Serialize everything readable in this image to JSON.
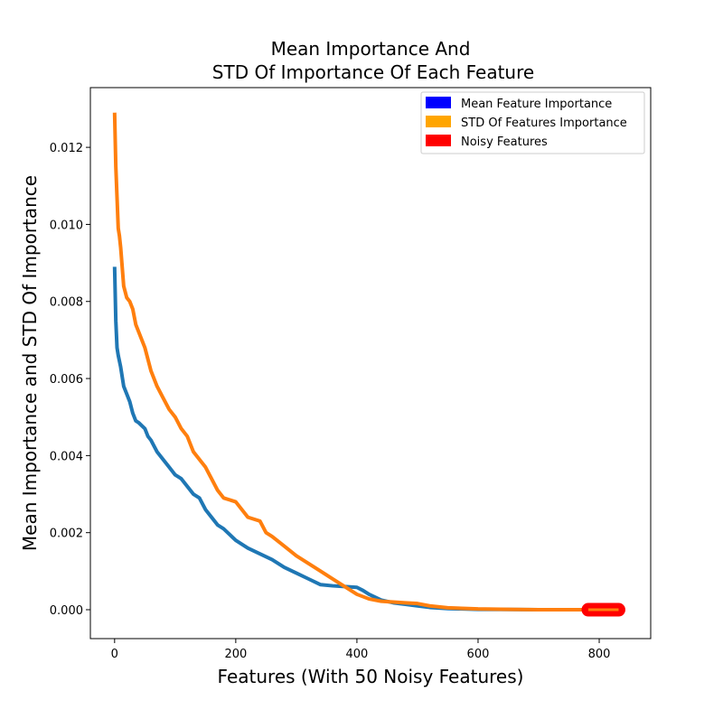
{
  "chart_data": {
    "type": "line",
    "title_line1": "Mean Importance And",
    "title_line2": "STD Of Importance Of Each Feature",
    "xlabel": "Features (With 50 Noisy Features)",
    "ylabel": "Mean Importance and STD Of Importance",
    "xlim": [
      -40,
      885
    ],
    "ylim": [
      -0.00075,
      0.01355
    ],
    "x_ticks": [
      0,
      200,
      400,
      600,
      800
    ],
    "x_tick_labels": [
      "0",
      "200",
      "400",
      "600",
      "800"
    ],
    "y_ticks": [
      0.0,
      0.002,
      0.004,
      0.006,
      0.008,
      0.01,
      0.012
    ],
    "y_tick_labels": [
      "0.000",
      "0.002",
      "0.004",
      "0.006",
      "0.008",
      "0.010",
      "0.012"
    ],
    "grid": false,
    "legend_position": "upper-right",
    "legend": [
      {
        "label": "Mean Feature Importance",
        "color": "#0000ff"
      },
      {
        "label": "STD Of Features Importance",
        "color": "#ffa500"
      },
      {
        "label": "Noisy Features",
        "color": "#ff0000"
      }
    ],
    "series": [
      {
        "name": "Mean Feature Importance",
        "color": "#1f77b4",
        "x": [
          0,
          2,
          4,
          6,
          10,
          15,
          20,
          25,
          30,
          35,
          40,
          50,
          55,
          60,
          70,
          80,
          90,
          100,
          110,
          120,
          130,
          140,
          150,
          160,
          170,
          180,
          190,
          200,
          220,
          240,
          260,
          280,
          300,
          320,
          340,
          360,
          380,
          400,
          410,
          420,
          440,
          460,
          480,
          500,
          520,
          550,
          600,
          650,
          700,
          780,
          832
        ],
        "y": [
          0.0089,
          0.0075,
          0.0068,
          0.0066,
          0.0063,
          0.0058,
          0.0056,
          0.0054,
          0.0051,
          0.0049,
          0.00485,
          0.0047,
          0.0045,
          0.0044,
          0.0041,
          0.0039,
          0.0037,
          0.0035,
          0.0034,
          0.0032,
          0.003,
          0.0029,
          0.0026,
          0.0024,
          0.0022,
          0.0021,
          0.00195,
          0.0018,
          0.0016,
          0.00145,
          0.0013,
          0.0011,
          0.00095,
          0.0008,
          0.00065,
          0.00062,
          0.0006,
          0.00058,
          0.0005,
          0.0004,
          0.00025,
          0.00018,
          0.00014,
          0.0001,
          6e-05,
          3e-05,
          1e-05,
          5e-06,
          0.0,
          0.0,
          0.0
        ]
      },
      {
        "name": "STD Of Features Importance",
        "color": "#ff7f0e",
        "x": [
          0,
          2,
          4,
          6,
          8,
          10,
          12,
          15,
          20,
          25,
          30,
          35,
          40,
          50,
          60,
          70,
          80,
          90,
          100,
          110,
          120,
          130,
          140,
          150,
          160,
          170,
          180,
          200,
          220,
          240,
          250,
          260,
          280,
          300,
          320,
          340,
          360,
          380,
          400,
          420,
          440,
          460,
          480,
          500,
          520,
          550,
          600,
          650,
          700,
          780,
          832
        ],
        "y": [
          0.0129,
          0.0115,
          0.0107,
          0.0099,
          0.0097,
          0.0094,
          0.009,
          0.0084,
          0.0081,
          0.008,
          0.0078,
          0.0074,
          0.0072,
          0.0068,
          0.0062,
          0.0058,
          0.0055,
          0.0052,
          0.005,
          0.0047,
          0.0045,
          0.0041,
          0.0039,
          0.0037,
          0.0034,
          0.0031,
          0.0029,
          0.0028,
          0.0024,
          0.0023,
          0.002,
          0.0019,
          0.00165,
          0.0014,
          0.0012,
          0.001,
          0.0008,
          0.0006,
          0.0004,
          0.00028,
          0.00022,
          0.0002,
          0.00018,
          0.00016,
          0.0001,
          5e-05,
          2e-05,
          1e-05,
          0.0,
          0.0,
          0.0
        ]
      },
      {
        "name": "Noisy Features",
        "color": "#ff0000",
        "x": [
          782,
          832
        ],
        "y": [
          0.0,
          0.0
        ]
      }
    ]
  }
}
